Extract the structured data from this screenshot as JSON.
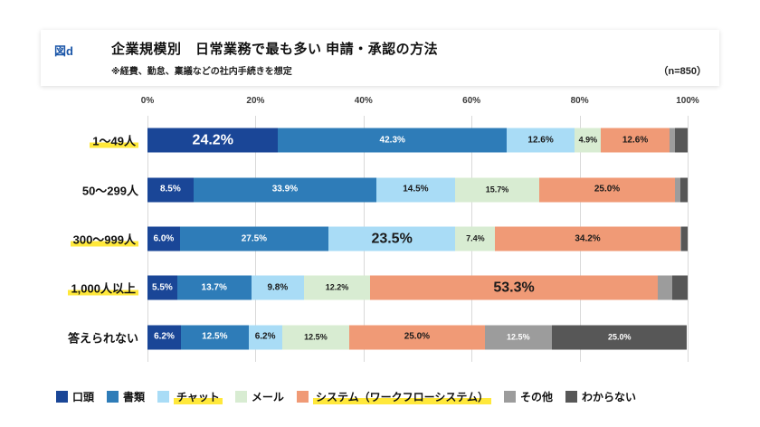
{
  "header": {
    "tag": "図d",
    "title": "企業規模別　日常業務で最も多い 申請・承認の方法",
    "subtitle": "※経費、勤怠、稟議などの社内手続きを想定",
    "sample_size": "（n=850）"
  },
  "chart_data": {
    "type": "bar",
    "variant": "horizontal-stacked",
    "unit": "%",
    "xlim": [
      0,
      100
    ],
    "x_ticks": [
      "0%",
      "20%",
      "40%",
      "60%",
      "80%",
      "100%"
    ],
    "grid": true,
    "legend_position": "bottom",
    "highlight_color": "#ffe83b",
    "categories": [
      "1〜49人",
      "50〜299人",
      "300〜999人",
      "1,000人以上",
      "答えられない"
    ],
    "highlighted_categories": [
      "1〜49人",
      "300〜999人",
      "1,000人以上"
    ],
    "highlighted_legend_items": [
      "チャット",
      "システム（ワークフローシステム）"
    ],
    "series": [
      {
        "name": "口頭",
        "color": "#1a4697",
        "label_color": "#ffffff",
        "label_size": 10,
        "values": [
          24.2,
          8.5,
          6.0,
          5.5,
          6.2
        ],
        "labels": [
          "24.2%",
          "8.5%",
          "6.0%",
          "5.5%",
          "6.2%"
        ]
      },
      {
        "name": "書類",
        "color": "#2e7cb8",
        "label_color": "#ffffff",
        "label_size": 10,
        "values": [
          42.3,
          33.9,
          27.5,
          13.7,
          12.5
        ],
        "labels": [
          "42.3%",
          "33.9%",
          "27.5%",
          "13.7%",
          "12.5%"
        ]
      },
      {
        "name": "チャット",
        "color": "#a9dcf6",
        "label_color": "#1a1a1a",
        "label_size": 10,
        "values": [
          12.6,
          14.5,
          23.5,
          9.8,
          6.2
        ],
        "labels": [
          "12.6%",
          "14.5%",
          "23.5%",
          "9.8%",
          "6.2%"
        ]
      },
      {
        "name": "メール",
        "color": "#d8ecd2",
        "label_color": "#1a1a1a",
        "label_size": 9,
        "values": [
          4.9,
          15.7,
          7.4,
          12.2,
          12.5
        ],
        "labels": [
          "4.9%",
          "15.7%",
          "7.4%",
          "12.2%",
          "12.5%"
        ]
      },
      {
        "name": "システム（ワークフローシステム）",
        "color": "#f09a76",
        "label_color": "#1a1a1a",
        "label_size": 10,
        "values": [
          12.6,
          25.0,
          34.2,
          53.3,
          25.0
        ],
        "labels": [
          "12.6%",
          "25.0%",
          "34.2%",
          "53.3%",
          "25.0%"
        ]
      },
      {
        "name": "その他",
        "color": "#9c9c9c",
        "label_color": "#ffffff",
        "label_size": 9,
        "values": [
          1.0,
          1.0,
          0.2,
          2.7,
          12.5
        ],
        "labels": [
          "",
          "",
          "",
          "",
          "12.5%"
        ]
      },
      {
        "name": "わからない",
        "color": "#575757",
        "label_color": "#ffffff",
        "label_size": 9,
        "values": [
          2.4,
          1.4,
          1.2,
          2.8,
          25.0
        ],
        "labels": [
          "",
          "",
          "",
          "",
          "25.0%"
        ]
      }
    ],
    "big_labels": [
      {
        "series": 0,
        "category": 0
      },
      {
        "series": 2,
        "category": 2
      },
      {
        "series": 4,
        "category": 3
      }
    ]
  }
}
